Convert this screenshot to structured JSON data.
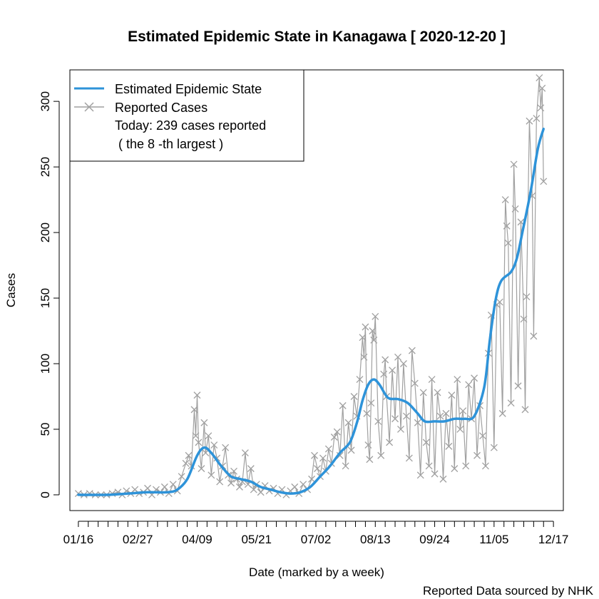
{
  "chart_data": {
    "type": "line",
    "title": "Estimated Epidemic State in Kanagawa [ 2020-12-20 ]",
    "xlabel": "Date (marked by a week)",
    "ylabel": "Cases",
    "source_note": "Reported Data sourced by NHK",
    "xlim": [
      "2020-01-10",
      "2020-12-24"
    ],
    "ylim": [
      -12,
      324
    ],
    "x_ticks": [
      "2020-01-16",
      "2020-01-23",
      "2020-01-30",
      "2020-02-06",
      "2020-02-13",
      "2020-02-20",
      "2020-02-27",
      "2020-03-05",
      "2020-03-12",
      "2020-03-19",
      "2020-03-26",
      "2020-04-02",
      "2020-04-09",
      "2020-04-16",
      "2020-04-23",
      "2020-04-30",
      "2020-05-07",
      "2020-05-14",
      "2020-05-21",
      "2020-05-28",
      "2020-06-04",
      "2020-06-11",
      "2020-06-18",
      "2020-06-25",
      "2020-07-02",
      "2020-07-09",
      "2020-07-16",
      "2020-07-23",
      "2020-07-30",
      "2020-08-06",
      "2020-08-13",
      "2020-08-20",
      "2020-08-27",
      "2020-09-03",
      "2020-09-10",
      "2020-09-17",
      "2020-09-24",
      "2020-10-01",
      "2020-10-08",
      "2020-10-15",
      "2020-10-22",
      "2020-10-29",
      "2020-11-05",
      "2020-11-12",
      "2020-11-19",
      "2020-11-26",
      "2020-12-03",
      "2020-12-10",
      "2020-12-17"
    ],
    "x_tick_labels": [
      {
        "date": "2020-01-16",
        "label": "01/16"
      },
      {
        "date": "2020-02-27",
        "label": "02/27"
      },
      {
        "date": "2020-04-09",
        "label": "04/09"
      },
      {
        "date": "2020-05-21",
        "label": "05/21"
      },
      {
        "date": "2020-07-02",
        "label": "07/02"
      },
      {
        "date": "2020-08-13",
        "label": "08/13"
      },
      {
        "date": "2020-09-24",
        "label": "09/24"
      },
      {
        "date": "2020-11-05",
        "label": "11/05"
      },
      {
        "date": "2020-12-17",
        "label": "12/17"
      }
    ],
    "y_ticks": [
      0,
      50,
      100,
      150,
      200,
      250,
      300
    ],
    "legend": {
      "position": "top-left",
      "entries": [
        "Estimated Epidemic State",
        "Reported Cases"
      ],
      "extra_lines": [
        "Today: 239 cases reported",
        " ( the 8 -th largest )"
      ]
    },
    "series": [
      {
        "name": "Reported Cases",
        "color": "#a0a0a0",
        "marker": "x",
        "points": [
          [
            "2020-01-16",
            1
          ],
          [
            "2020-01-20",
            0
          ],
          [
            "2020-01-24",
            1
          ],
          [
            "2020-01-28",
            0
          ],
          [
            "2020-02-01",
            0
          ],
          [
            "2020-02-05",
            0
          ],
          [
            "2020-02-09",
            1
          ],
          [
            "2020-02-13",
            2
          ],
          [
            "2020-02-16",
            0
          ],
          [
            "2020-02-19",
            3
          ],
          [
            "2020-02-22",
            1
          ],
          [
            "2020-02-25",
            4
          ],
          [
            "2020-02-28",
            1
          ],
          [
            "2020-03-02",
            2
          ],
          [
            "2020-03-05",
            5
          ],
          [
            "2020-03-08",
            0
          ],
          [
            "2020-03-11",
            4
          ],
          [
            "2020-03-14",
            2
          ],
          [
            "2020-03-17",
            6
          ],
          [
            "2020-03-20",
            1
          ],
          [
            "2020-03-23",
            8
          ],
          [
            "2020-03-26",
            3
          ],
          [
            "2020-03-29",
            14
          ],
          [
            "2020-04-01",
            24
          ],
          [
            "2020-04-03",
            30
          ],
          [
            "2020-04-05",
            22
          ],
          [
            "2020-04-07",
            65
          ],
          [
            "2020-04-08",
            45
          ],
          [
            "2020-04-09",
            76
          ],
          [
            "2020-04-10",
            40
          ],
          [
            "2020-04-12",
            20
          ],
          [
            "2020-04-14",
            55
          ],
          [
            "2020-04-15",
            32
          ],
          [
            "2020-04-17",
            45
          ],
          [
            "2020-04-19",
            15
          ],
          [
            "2020-04-21",
            38
          ],
          [
            "2020-04-23",
            28
          ],
          [
            "2020-04-25",
            10
          ],
          [
            "2020-04-27",
            22
          ],
          [
            "2020-04-29",
            36
          ],
          [
            "2020-05-01",
            15
          ],
          [
            "2020-05-03",
            9
          ],
          [
            "2020-05-05",
            18
          ],
          [
            "2020-05-07",
            12
          ],
          [
            "2020-05-09",
            6
          ],
          [
            "2020-05-11",
            10
          ],
          [
            "2020-05-13",
            32
          ],
          [
            "2020-05-15",
            8
          ],
          [
            "2020-05-17",
            20
          ],
          [
            "2020-05-19",
            4
          ],
          [
            "2020-05-21",
            8
          ],
          [
            "2020-05-24",
            2
          ],
          [
            "2020-05-27",
            7
          ],
          [
            "2020-05-30",
            3
          ],
          [
            "2020-06-02",
            5
          ],
          [
            "2020-06-05",
            1
          ],
          [
            "2020-06-08",
            4
          ],
          [
            "2020-06-11",
            0
          ],
          [
            "2020-06-14",
            3
          ],
          [
            "2020-06-17",
            6
          ],
          [
            "2020-06-20",
            1
          ],
          [
            "2020-06-23",
            8
          ],
          [
            "2020-06-26",
            4
          ],
          [
            "2020-06-29",
            12
          ],
          [
            "2020-07-01",
            30
          ],
          [
            "2020-07-03",
            20
          ],
          [
            "2020-07-05",
            14
          ],
          [
            "2020-07-07",
            28
          ],
          [
            "2020-07-09",
            18
          ],
          [
            "2020-07-11",
            35
          ],
          [
            "2020-07-13",
            24
          ],
          [
            "2020-07-15",
            44
          ],
          [
            "2020-07-17",
            48
          ],
          [
            "2020-07-19",
            30
          ],
          [
            "2020-07-21",
            68
          ],
          [
            "2020-07-23",
            22
          ],
          [
            "2020-07-25",
            55
          ],
          [
            "2020-07-27",
            34
          ],
          [
            "2020-07-29",
            75
          ],
          [
            "2020-07-31",
            60
          ],
          [
            "2020-08-02",
            88
          ],
          [
            "2020-08-04",
            120
          ],
          [
            "2020-08-05",
            105
          ],
          [
            "2020-08-06",
            128
          ],
          [
            "2020-08-07",
            62
          ],
          [
            "2020-08-08",
            38
          ],
          [
            "2020-08-09",
            27
          ],
          [
            "2020-08-10",
            70
          ],
          [
            "2020-08-11",
            125
          ],
          [
            "2020-08-12",
            118
          ],
          [
            "2020-08-13",
            136
          ],
          [
            "2020-08-15",
            56
          ],
          [
            "2020-08-17",
            30
          ],
          [
            "2020-08-19",
            92
          ],
          [
            "2020-08-20",
            103
          ],
          [
            "2020-08-21",
            75
          ],
          [
            "2020-08-23",
            40
          ],
          [
            "2020-08-25",
            95
          ],
          [
            "2020-08-27",
            58
          ],
          [
            "2020-08-29",
            105
          ],
          [
            "2020-08-31",
            50
          ],
          [
            "2020-09-02",
            100
          ],
          [
            "2020-09-04",
            60
          ],
          [
            "2020-09-06",
            28
          ],
          [
            "2020-09-08",
            110
          ],
          [
            "2020-09-10",
            85
          ],
          [
            "2020-09-12",
            55
          ],
          [
            "2020-09-14",
            15
          ],
          [
            "2020-09-16",
            78
          ],
          [
            "2020-09-18",
            40
          ],
          [
            "2020-09-20",
            22
          ],
          [
            "2020-09-22",
            88
          ],
          [
            "2020-09-24",
            16
          ],
          [
            "2020-09-26",
            78
          ],
          [
            "2020-09-28",
            60
          ],
          [
            "2020-09-30",
            12
          ],
          [
            "2020-10-02",
            62
          ],
          [
            "2020-10-04",
            37
          ],
          [
            "2020-10-06",
            76
          ],
          [
            "2020-10-08",
            20
          ],
          [
            "2020-10-10",
            88
          ],
          [
            "2020-10-12",
            50
          ],
          [
            "2020-10-14",
            64
          ],
          [
            "2020-10-16",
            22
          ],
          [
            "2020-10-18",
            84
          ],
          [
            "2020-10-20",
            58
          ],
          [
            "2020-10-22",
            89
          ],
          [
            "2020-10-24",
            30
          ],
          [
            "2020-10-26",
            68
          ],
          [
            "2020-10-28",
            45
          ],
          [
            "2020-10-30",
            22
          ],
          [
            "2020-11-01",
            108
          ],
          [
            "2020-11-03",
            137
          ],
          [
            "2020-11-05",
            36
          ],
          [
            "2020-11-07",
            145
          ],
          [
            "2020-11-09",
            147
          ],
          [
            "2020-11-11",
            62
          ],
          [
            "2020-11-13",
            225
          ],
          [
            "2020-11-14",
            205
          ],
          [
            "2020-11-15",
            192
          ],
          [
            "2020-11-17",
            70
          ],
          [
            "2020-11-19",
            252
          ],
          [
            "2020-11-20",
            218
          ],
          [
            "2020-11-22",
            83
          ],
          [
            "2020-11-24",
            208
          ],
          [
            "2020-11-26",
            134
          ],
          [
            "2020-11-27",
            65
          ],
          [
            "2020-11-28",
            151
          ],
          [
            "2020-11-30",
            285
          ],
          [
            "2020-12-02",
            228
          ],
          [
            "2020-12-03",
            121
          ],
          [
            "2020-12-05",
            287
          ],
          [
            "2020-12-07",
            318
          ],
          [
            "2020-12-08",
            295
          ],
          [
            "2020-12-09",
            310
          ],
          [
            "2020-12-10",
            239
          ]
        ]
      },
      {
        "name": "Estimated Epidemic State",
        "color": "#2e93d9",
        "points": [
          [
            "2020-01-16",
            0
          ],
          [
            "2020-02-06",
            0
          ],
          [
            "2020-02-20",
            1
          ],
          [
            "2020-03-05",
            2
          ],
          [
            "2020-03-19",
            2
          ],
          [
            "2020-03-26",
            4
          ],
          [
            "2020-04-02",
            12
          ],
          [
            "2020-04-09",
            30
          ],
          [
            "2020-04-14",
            36
          ],
          [
            "2020-04-19",
            32
          ],
          [
            "2020-04-26",
            22
          ],
          [
            "2020-05-03",
            14
          ],
          [
            "2020-05-10",
            12
          ],
          [
            "2020-05-17",
            10
          ],
          [
            "2020-05-24",
            6
          ],
          [
            "2020-05-31",
            4
          ],
          [
            "2020-06-07",
            2
          ],
          [
            "2020-06-14",
            1
          ],
          [
            "2020-06-21",
            2
          ],
          [
            "2020-06-28",
            6
          ],
          [
            "2020-07-05",
            14
          ],
          [
            "2020-07-12",
            22
          ],
          [
            "2020-07-19",
            32
          ],
          [
            "2020-07-26",
            40
          ],
          [
            "2020-07-31",
            55
          ],
          [
            "2020-08-04",
            72
          ],
          [
            "2020-08-08",
            84
          ],
          [
            "2020-08-12",
            88
          ],
          [
            "2020-08-16",
            84
          ],
          [
            "2020-08-22",
            74
          ],
          [
            "2020-08-29",
            73
          ],
          [
            "2020-09-05",
            70
          ],
          [
            "2020-09-12",
            62
          ],
          [
            "2020-09-17",
            56
          ],
          [
            "2020-09-24",
            56
          ],
          [
            "2020-10-01",
            56
          ],
          [
            "2020-10-08",
            58
          ],
          [
            "2020-10-15",
            58
          ],
          [
            "2020-10-22",
            60
          ],
          [
            "2020-10-29",
            82
          ],
          [
            "2020-11-02",
            118
          ],
          [
            "2020-11-06",
            148
          ],
          [
            "2020-11-10",
            163
          ],
          [
            "2020-11-17",
            170
          ],
          [
            "2020-11-21",
            180
          ],
          [
            "2020-11-25",
            200
          ],
          [
            "2020-12-01",
            232
          ],
          [
            "2020-12-06",
            264
          ],
          [
            "2020-12-10",
            279
          ]
        ]
      }
    ]
  }
}
